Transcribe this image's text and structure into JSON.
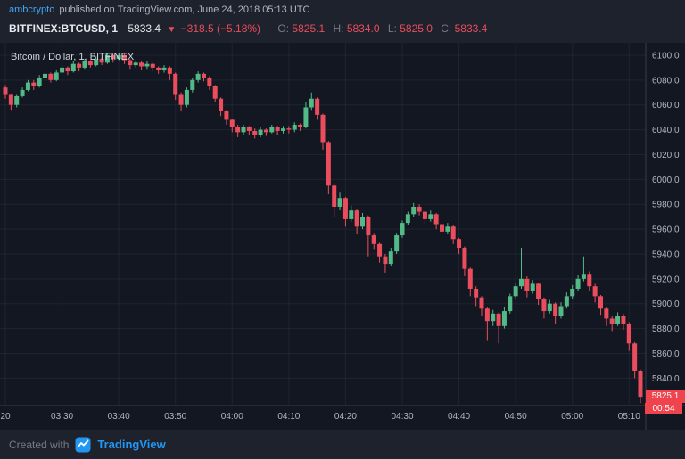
{
  "header": {
    "author": "ambcrypto",
    "published_text": "published on TradingView.com, June 24, 2018 05:13 UTC",
    "symbol": "BITFINEX:BTCUSD, 1",
    "price": "5833.4",
    "down_arrow": "▼",
    "change": "−318.5 (−5.18%)",
    "ohlc_row": [
      {
        "label": "O:",
        "value": "5825.1"
      },
      {
        "label": "H:",
        "value": "5834.0"
      },
      {
        "label": "L:",
        "value": "5825.0"
      },
      {
        "label": "C:",
        "value": "5833.4"
      }
    ]
  },
  "chart": {
    "legend": "Bitcoin / Dollar, 1, BITFINEX",
    "last_price_label": "5825.1",
    "countdown_label": "00:54",
    "price_ticks": [
      "6100.0",
      "6080.0",
      "6060.0",
      "6040.0",
      "6020.0",
      "6000.0",
      "5980.0",
      "5960.0",
      "5940.0",
      "5920.0",
      "5900.0",
      "5880.0",
      "5860.0",
      "5840.0"
    ],
    "time_ticks": [
      {
        "m": 0,
        "label": "20"
      },
      {
        "m": 10,
        "label": "03:30"
      },
      {
        "m": 20,
        "label": "03:40"
      },
      {
        "m": 30,
        "label": "03:50"
      },
      {
        "m": 40,
        "label": "04:00"
      },
      {
        "m": 50,
        "label": "04:10"
      },
      {
        "m": 60,
        "label": "04:20"
      },
      {
        "m": 70,
        "label": "04:30"
      },
      {
        "m": 80,
        "label": "04:40"
      },
      {
        "m": 90,
        "label": "04:50"
      },
      {
        "m": 100,
        "label": "05:00"
      },
      {
        "m": 110,
        "label": "05:10"
      }
    ],
    "colors": {
      "up": "#53b987",
      "down": "#eb4d5c",
      "grid": "rgba(240,243,250,0.06)",
      "axis_line": "#363c4e",
      "axis_text": "#b2b5be",
      "marker_bg": "#ef434e",
      "background": "#131722"
    }
  },
  "chart_data": {
    "type": "candlestick",
    "title": "Bitcoin / Dollar, 1, BITFINEX",
    "symbol": "BITFINEX:BTCUSD",
    "interval": "1 minute",
    "start_time": "03:20",
    "end_time": "05:12",
    "interval_minutes": 1,
    "price_range": [
      5818,
      6110
    ],
    "last_price": 5825.1,
    "ohlc": [
      [
        6074,
        6076,
        6065,
        6068
      ],
      [
        6068,
        6069,
        6056,
        6060
      ],
      [
        6060,
        6068,
        6058,
        6067
      ],
      [
        6067,
        6074,
        6066,
        6072
      ],
      [
        6072,
        6080,
        6071,
        6078
      ],
      [
        6078,
        6080,
        6072,
        6075
      ],
      [
        6075,
        6084,
        6074,
        6082
      ],
      [
        6082,
        6087,
        6080,
        6085
      ],
      [
        6085,
        6086,
        6078,
        6080
      ],
      [
        6080,
        6088,
        6079,
        6086
      ],
      [
        6086,
        6092,
        6085,
        6090
      ],
      [
        6090,
        6091,
        6084,
        6087
      ],
      [
        6087,
        6095,
        6086,
        6093
      ],
      [
        6093,
        6094,
        6087,
        6090
      ],
      [
        6090,
        6097,
        6089,
        6095
      ],
      [
        6095,
        6096,
        6090,
        6092
      ],
      [
        6092,
        6099,
        6091,
        6097
      ],
      [
        6097,
        6098,
        6092,
        6094
      ],
      [
        6094,
        6102,
        6093,
        6100
      ],
      [
        6100,
        6101,
        6094,
        6097
      ],
      [
        6097,
        6102,
        6096,
        6100
      ],
      [
        6100,
        6101,
        6093,
        6096
      ],
      [
        6096,
        6097,
        6089,
        6092
      ],
      [
        6092,
        6096,
        6090,
        6094
      ],
      [
        6094,
        6095,
        6088,
        6091
      ],
      [
        6091,
        6095,
        6089,
        6093
      ],
      [
        6093,
        6094,
        6087,
        6090
      ],
      [
        6090,
        6091,
        6085,
        6088
      ],
      [
        6088,
        6092,
        6086,
        6090
      ],
      [
        6090,
        6091,
        6080,
        6085
      ],
      [
        6085,
        6086,
        6064,
        6068
      ],
      [
        6068,
        6070,
        6055,
        6060
      ],
      [
        6060,
        6074,
        6058,
        6072
      ],
      [
        6072,
        6082,
        6070,
        6080
      ],
      [
        6080,
        6087,
        6078,
        6085
      ],
      [
        6085,
        6086,
        6079,
        6082
      ],
      [
        6082,
        6083,
        6072,
        6075
      ],
      [
        6075,
        6076,
        6062,
        6065
      ],
      [
        6065,
        6066,
        6051,
        6055
      ],
      [
        6055,
        6056,
        6044,
        6048
      ],
      [
        6048,
        6049,
        6038,
        6042
      ],
      [
        6042,
        6044,
        6034,
        6038
      ],
      [
        6038,
        6044,
        6036,
        6042
      ],
      [
        6042,
        6043,
        6036,
        6039
      ],
      [
        6039,
        6041,
        6033,
        6036
      ],
      [
        6036,
        6042,
        6034,
        6040
      ],
      [
        6040,
        6041,
        6035,
        6038
      ],
      [
        6038,
        6044,
        6037,
        6042
      ],
      [
        6042,
        6043,
        6036,
        6039
      ],
      [
        6039,
        6043,
        6037,
        6041
      ],
      [
        6041,
        6043,
        6037,
        6040
      ],
      [
        6040,
        6046,
        6038,
        6044
      ],
      [
        6044,
        6045,
        6039,
        6042
      ],
      [
        6042,
        6062,
        6041,
        6058
      ],
      [
        6058,
        6070,
        6056,
        6065
      ],
      [
        6065,
        6066,
        6048,
        6052
      ],
      [
        6052,
        6053,
        6024,
        6030
      ],
      [
        6030,
        6031,
        5988,
        5995
      ],
      [
        5995,
        5997,
        5970,
        5978
      ],
      [
        5978,
        5990,
        5975,
        5985
      ],
      [
        5985,
        5986,
        5962,
        5968
      ],
      [
        5968,
        5979,
        5966,
        5975
      ],
      [
        5975,
        5976,
        5956,
        5962
      ],
      [
        5962,
        5973,
        5960,
        5970
      ],
      [
        5970,
        5971,
        5938,
        5955
      ],
      [
        5955,
        5957,
        5944,
        5948
      ],
      [
        5948,
        5949,
        5933,
        5938
      ],
      [
        5938,
        5940,
        5925,
        5932
      ],
      [
        5932,
        5945,
        5930,
        5942
      ],
      [
        5942,
        5957,
        5940,
        5955
      ],
      [
        5955,
        5967,
        5953,
        5965
      ],
      [
        5965,
        5974,
        5963,
        5972
      ],
      [
        5972,
        5981,
        5970,
        5978
      ],
      [
        5978,
        5980,
        5971,
        5974
      ],
      [
        5974,
        5975,
        5964,
        5968
      ],
      [
        5968,
        5975,
        5966,
        5972
      ],
      [
        5972,
        5973,
        5960,
        5964
      ],
      [
        5964,
        5966,
        5954,
        5958
      ],
      [
        5958,
        5965,
        5956,
        5962
      ],
      [
        5962,
        5963,
        5948,
        5952
      ],
      [
        5952,
        5953,
        5940,
        5945
      ],
      [
        5945,
        5946,
        5922,
        5928
      ],
      [
        5928,
        5929,
        5906,
        5912
      ],
      [
        5912,
        5914,
        5898,
        5905
      ],
      [
        5905,
        5906,
        5890,
        5896
      ],
      [
        5896,
        5897,
        5870,
        5886
      ],
      [
        5886,
        5895,
        5882,
        5892
      ],
      [
        5892,
        5893,
        5868,
        5882
      ],
      [
        5882,
        5897,
        5880,
        5894
      ],
      [
        5894,
        5908,
        5892,
        5906
      ],
      [
        5906,
        5917,
        5904,
        5914
      ],
      [
        5914,
        5945,
        5912,
        5920
      ],
      [
        5920,
        5922,
        5905,
        5910
      ],
      [
        5910,
        5919,
        5908,
        5916
      ],
      [
        5916,
        5917,
        5899,
        5904
      ],
      [
        5904,
        5905,
        5888,
        5894
      ],
      [
        5894,
        5903,
        5892,
        5900
      ],
      [
        5900,
        5901,
        5884,
        5890
      ],
      [
        5890,
        5901,
        5888,
        5898
      ],
      [
        5898,
        5909,
        5896,
        5906
      ],
      [
        5906,
        5915,
        5904,
        5912
      ],
      [
        5912,
        5923,
        5910,
        5920
      ],
      [
        5920,
        5938,
        5918,
        5924
      ],
      [
        5924,
        5926,
        5910,
        5914
      ],
      [
        5914,
        5916,
        5901,
        5906
      ],
      [
        5906,
        5907,
        5891,
        5896
      ],
      [
        5896,
        5897,
        5882,
        5888
      ],
      [
        5888,
        5890,
        5878,
        5884
      ],
      [
        5884,
        5893,
        5882,
        5890
      ],
      [
        5890,
        5892,
        5879,
        5884
      ],
      [
        5884,
        5885,
        5862,
        5868
      ],
      [
        5868,
        5869,
        5840,
        5846
      ],
      [
        5846,
        5847,
        5820,
        5825.1
      ]
    ]
  },
  "footer": {
    "created_with": "Created with",
    "brand": "TradingView"
  },
  "icons": {
    "tradingview_logo": "tradingview-logo",
    "down_arrow": "▼"
  }
}
